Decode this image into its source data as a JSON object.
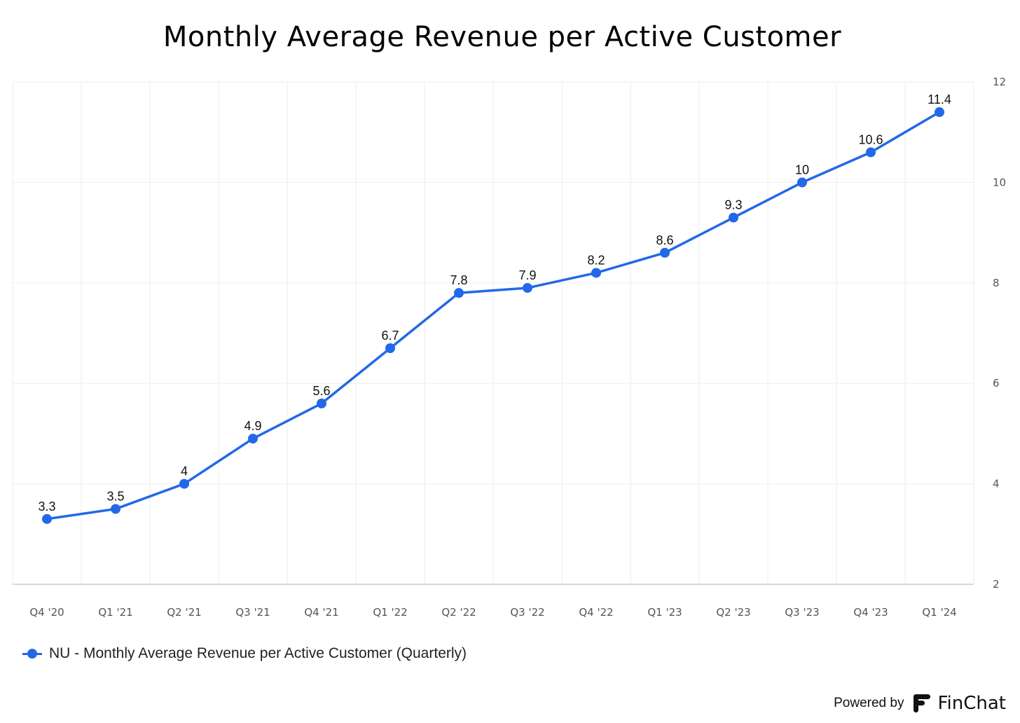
{
  "chart_data": {
    "type": "line",
    "title": "Monthly Average Revenue per Active Customer",
    "categories": [
      "Q4 '20",
      "Q1 '21",
      "Q2 '21",
      "Q3 '21",
      "Q4 '21",
      "Q1 '22",
      "Q2 '22",
      "Q3 '22",
      "Q4 '22",
      "Q1 '23",
      "Q2 '23",
      "Q3 '23",
      "Q4 '23",
      "Q1 '24"
    ],
    "series": [
      {
        "name": "NU - Monthly Average Revenue per Active Customer (Quarterly)",
        "values": [
          3.3,
          3.5,
          4,
          4.9,
          5.6,
          6.7,
          7.8,
          7.9,
          8.2,
          8.6,
          9.3,
          10,
          10.6,
          11.4
        ],
        "data_labels": [
          "3.3",
          "3.5",
          "4",
          "4.9",
          "5.6",
          "6.7",
          "7.8",
          "7.9",
          "8.2",
          "8.6",
          "9.3",
          "10",
          "10.6",
          "11.4"
        ],
        "color": "#2268E8"
      }
    ],
    "xlabel": "",
    "ylabel": "",
    "ylim": [
      2,
      12
    ],
    "yticks": [
      2,
      4,
      6,
      8,
      10,
      12
    ],
    "ytick_labels": [
      "2",
      "4",
      "6",
      "8",
      "10",
      "12"
    ],
    "y_axis_side": "right",
    "grid": true,
    "legend_position": "bottom-left"
  },
  "legend": {
    "label": "NU - Monthly Average Revenue per Active Customer (Quarterly)"
  },
  "branding": {
    "powered_by": "Powered by",
    "name": "FinChat"
  },
  "colors": {
    "series": "#2268E8",
    "grid": "#eeeeee",
    "axis": "#cccccc"
  }
}
